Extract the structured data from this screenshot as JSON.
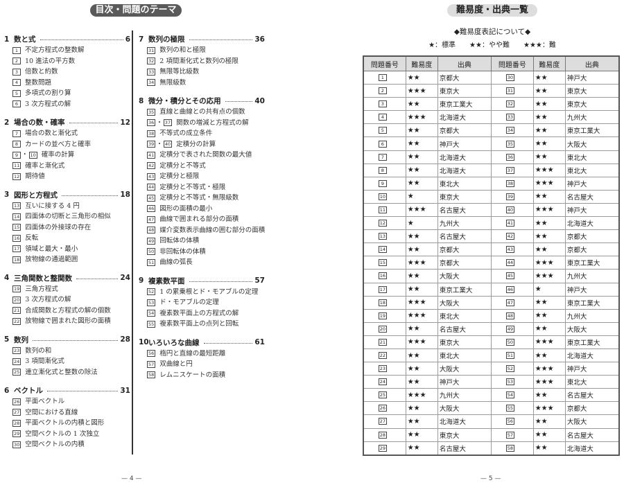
{
  "toc": {
    "title": "目次・問題のテーマ",
    "columns": [
      [
        {
          "num": "1",
          "title": "数と式",
          "page": "6",
          "items": [
            {
              "nums": [
                "1"
              ],
              "text": "不定方程式の整数解"
            },
            {
              "nums": [
                "2"
              ],
              "text": "10 進法の平方数"
            },
            {
              "nums": [
                "3"
              ],
              "text": "倍数と約数"
            },
            {
              "nums": [
                "4"
              ],
              "text": "整数問題"
            },
            {
              "nums": [
                "5"
              ],
              "text": "多項式の割り算"
            },
            {
              "nums": [
                "6"
              ],
              "text": "3 次方程式の解"
            }
          ]
        },
        {
          "num": "2",
          "title": "場合の数・確率",
          "page": "12",
          "items": [
            {
              "nums": [
                "7"
              ],
              "text": "場合の数と漸化式"
            },
            {
              "nums": [
                "8"
              ],
              "text": "カードの並べ方と確率"
            },
            {
              "nums": [
                "9",
                "10"
              ],
              "text": "確率の計算"
            },
            {
              "nums": [
                "11"
              ],
              "text": "確率と漸化式"
            },
            {
              "nums": [
                "12"
              ],
              "text": "期待値"
            }
          ]
        },
        {
          "num": "3",
          "title": "図形と方程式",
          "page": "18",
          "items": [
            {
              "nums": [
                "13"
              ],
              "text": "互いに接する 4 円"
            },
            {
              "nums": [
                "14"
              ],
              "text": "四面体の切断と三角形の相似"
            },
            {
              "nums": [
                "15"
              ],
              "text": "四面体の外接球の存在"
            },
            {
              "nums": [
                "16"
              ],
              "text": "反転"
            },
            {
              "nums": [
                "17"
              ],
              "text": "領域と最大・最小"
            },
            {
              "nums": [
                "18"
              ],
              "text": "放物線の通過範囲"
            }
          ]
        },
        {
          "num": "4",
          "title": "三角関数と整関数",
          "page": "24",
          "items": [
            {
              "nums": [
                "19"
              ],
              "text": "三角方程式"
            },
            {
              "nums": [
                "20"
              ],
              "text": "3 次方程式の解"
            },
            {
              "nums": [
                "21"
              ],
              "text": "合成関数と方程式の解の個数"
            },
            {
              "nums": [
                "22"
              ],
              "text": "放物線で囲まれた図形の面積"
            }
          ]
        },
        {
          "num": "5",
          "title": "数列",
          "page": "28",
          "items": [
            {
              "nums": [
                "23"
              ],
              "text": "数列の和"
            },
            {
              "nums": [
                "24"
              ],
              "text": "3 項間漸化式"
            },
            {
              "nums": [
                "25"
              ],
              "text": "連立漸化式と整数の除法"
            }
          ]
        },
        {
          "num": "6",
          "title": "ベクトル",
          "page": "31",
          "items": [
            {
              "nums": [
                "26"
              ],
              "text": "平面ベクトル"
            },
            {
              "nums": [
                "27"
              ],
              "text": "空間における直線"
            },
            {
              "nums": [
                "28"
              ],
              "text": "平面ベクトルの内積と図形"
            },
            {
              "nums": [
                "29"
              ],
              "text": "空間ベクトルの 1 次独立"
            },
            {
              "nums": [
                "30"
              ],
              "text": "空間ベクトルの内積"
            }
          ]
        }
      ],
      [
        {
          "num": "7",
          "title": "数列の極限",
          "page": "36",
          "items": [
            {
              "nums": [
                "31"
              ],
              "text": "数列の和と極限"
            },
            {
              "nums": [
                "32"
              ],
              "text": "2 項間漸化式と数列の極限"
            },
            {
              "nums": [
                "33"
              ],
              "text": "無限等比級数"
            },
            {
              "nums": [
                "34"
              ],
              "text": "無限級数"
            }
          ]
        },
        {
          "num": "8",
          "title": "微分・積分とその応用",
          "page": "40",
          "items": [
            {
              "nums": [
                "35"
              ],
              "text": "直線と曲線との共有点の個数"
            },
            {
              "nums": [
                "36",
                "37"
              ],
              "text": "関数の増減と方程式の解"
            },
            {
              "nums": [
                "38"
              ],
              "text": "不等式の成立条件"
            },
            {
              "nums": [
                "39",
                "40"
              ],
              "text": "定積分の計算"
            },
            {
              "nums": [
                "41"
              ],
              "text": "定積分で表された関数の最大値"
            },
            {
              "nums": [
                "42"
              ],
              "text": "定積分と不等式"
            },
            {
              "nums": [
                "43"
              ],
              "text": "定積分と極限"
            },
            {
              "nums": [
                "44"
              ],
              "text": "定積分と不等式・極限"
            },
            {
              "nums": [
                "45"
              ],
              "text": "定積分と不等式・無限級数"
            },
            {
              "nums": [
                "46"
              ],
              "text": "図形の面積の最小"
            },
            {
              "nums": [
                "47"
              ],
              "text": "曲線で囲まれる部分の面積"
            },
            {
              "nums": [
                "48"
              ],
              "text": "媒介変数表示曲線の囲む部分の面積"
            },
            {
              "nums": [
                "49"
              ],
              "text": "回転体の体積"
            },
            {
              "nums": [
                "50"
              ],
              "text": "非回転体の体積"
            },
            {
              "nums": [
                "51"
              ],
              "text": "曲線の弧長"
            }
          ]
        },
        {
          "num": "9",
          "title": "複素数平面",
          "page": "57",
          "items": [
            {
              "nums": [
                "52"
              ],
              "text": "1 の累乗根とド・モアブルの定理"
            },
            {
              "nums": [
                "53"
              ],
              "text": "ド・モアブルの定理"
            },
            {
              "nums": [
                "54"
              ],
              "text": "複素数平面上の方程式の解"
            },
            {
              "nums": [
                "55"
              ],
              "text": "複素数平面上の点列と回転"
            }
          ]
        },
        {
          "num": "10",
          "title": "いろいろな曲線",
          "page": "61",
          "items": [
            {
              "nums": [
                "56"
              ],
              "text": "楕円と直線の最短距離"
            },
            {
              "nums": [
                "57"
              ],
              "text": "双曲線と円"
            },
            {
              "nums": [
                "58"
              ],
              "text": "レムニスケートの面積"
            }
          ]
        }
      ]
    ],
    "page_number": "— 4 —"
  },
  "difficulty": {
    "title": "難易度・出典一覧",
    "legend_heading": "◆難易度表記について◆",
    "legend": "★：標準　　★★：やや難　　★★★：難",
    "headers": [
      "問題番号",
      "難易度",
      "出典",
      "問題番号",
      "難易度",
      "出典"
    ],
    "rows": [
      [
        "1",
        "★★",
        "京都大",
        "30",
        "★★",
        "神戸大"
      ],
      [
        "2",
        "★★★",
        "東京大",
        "31",
        "★★",
        "東京大"
      ],
      [
        "3",
        "★★",
        "東京工業大",
        "32",
        "★★",
        "東京大"
      ],
      [
        "4",
        "★★★",
        "北海道大",
        "33",
        "★★",
        "九州大"
      ],
      [
        "5",
        "★★",
        "京都大",
        "34",
        "★★",
        "東京工業大"
      ],
      [
        "6",
        "★★",
        "神戸大",
        "35",
        "★★",
        "大阪大"
      ],
      [
        "7",
        "★★",
        "北海道大",
        "36",
        "★★",
        "東北大"
      ],
      [
        "8",
        "★★",
        "北海道大",
        "37",
        "★★★",
        "東北大"
      ],
      [
        "9",
        "★★",
        "東北大",
        "38",
        "★★★",
        "神戸大"
      ],
      [
        "10",
        "★",
        "東京大",
        "39",
        "★★",
        "名古屋大"
      ],
      [
        "11",
        "★★★",
        "名古屋大",
        "40",
        "★★★",
        "神戸大"
      ],
      [
        "12",
        "★",
        "九州大",
        "41",
        "★★",
        "北海道大"
      ],
      [
        "13",
        "★★",
        "名古屋大",
        "42",
        "★★",
        "京都大"
      ],
      [
        "14",
        "★★",
        "京都大",
        "43",
        "★★",
        "京都大"
      ],
      [
        "15",
        "★★★",
        "京都大",
        "44",
        "★★★",
        "東京工業大"
      ],
      [
        "16",
        "★★",
        "大阪大",
        "45",
        "★★★",
        "九州大"
      ],
      [
        "17",
        "★★",
        "東京工業大",
        "46",
        "★",
        "神戸大"
      ],
      [
        "18",
        "★★★",
        "大阪大",
        "47",
        "★★",
        "東京工業大"
      ],
      [
        "19",
        "★★★",
        "東北大",
        "48",
        "★★",
        "九州大"
      ],
      [
        "20",
        "★★",
        "名古屋大",
        "49",
        "★★",
        "大阪大"
      ],
      [
        "21",
        "★★★",
        "東京大",
        "50",
        "★★★",
        "東京工業大"
      ],
      [
        "22",
        "★★",
        "東北大",
        "51",
        "★★",
        "北海道大"
      ],
      [
        "23",
        "★★",
        "大阪大",
        "52",
        "★★★",
        "神戸大"
      ],
      [
        "24",
        "★★",
        "神戸大",
        "53",
        "★★★",
        "東北大"
      ],
      [
        "25",
        "★★★",
        "九州大",
        "54",
        "★★",
        "名古屋大"
      ],
      [
        "26",
        "★★",
        "大阪大",
        "55",
        "★★★",
        "京都大"
      ],
      [
        "27",
        "★★",
        "北海道大",
        "56",
        "★★",
        "大阪大"
      ],
      [
        "28",
        "★★",
        "東京大",
        "57",
        "★★",
        "名古屋大"
      ],
      [
        "29",
        "★★",
        "名古屋大",
        "58",
        "★★",
        "北海道大"
      ]
    ],
    "page_number": "— 5 —"
  }
}
